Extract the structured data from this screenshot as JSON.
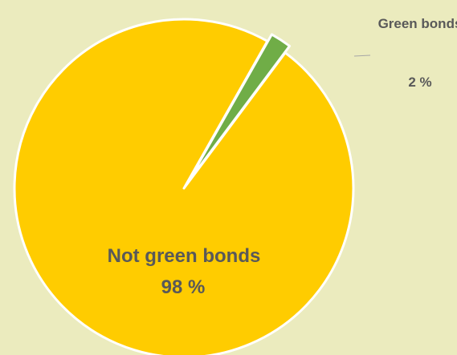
{
  "chart_data": {
    "type": "pie",
    "title": "",
    "slices": [
      {
        "label": "Green bonds",
        "value": 2,
        "value_label": "2 %",
        "color": "#70ad47",
        "exploded": true
      },
      {
        "label": "Not green bonds",
        "value": 98,
        "value_label": "98 %",
        "color": "#ffcc00",
        "exploded": false
      }
    ],
    "legend": "none"
  },
  "colors": {
    "background": "#ebebbe",
    "label_text": "#595959",
    "slice_border": "#ffffff"
  }
}
